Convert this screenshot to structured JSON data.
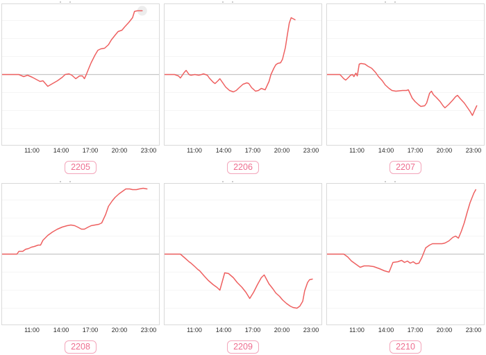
{
  "colors": {
    "line": "#ee5f5f",
    "grid": "#f5f5f5",
    "baseline": "#c6c6c6",
    "panel_border": "#d9d9d9",
    "badge_text": "#ee6d8f",
    "badge_border": "#f3a5ba",
    "tick_text": "#2b2b2b",
    "end_halo": "#ededed"
  },
  "chart_data": [
    {
      "type": "line",
      "label": "2205",
      "x_tick_labels": [
        "11:00",
        "14:00",
        "17:00",
        "20:00",
        "23:00"
      ],
      "x_tick_hours": [
        11,
        14,
        17,
        20,
        23
      ],
      "baseline": 0,
      "y_range": [
        -1,
        1
      ],
      "end_marker_halo": true,
      "points": [
        [
          7.85,
          0
        ],
        [
          9.6,
          0
        ],
        [
          10.1,
          -0.03
        ],
        [
          10.5,
          -0.01
        ],
        [
          11.0,
          -0.04
        ],
        [
          11.4,
          -0.07
        ],
        [
          11.8,
          -0.1
        ],
        [
          12.1,
          -0.09
        ],
        [
          12.6,
          -0.17
        ],
        [
          13.1,
          -0.13
        ],
        [
          13.6,
          -0.09
        ],
        [
          14.1,
          -0.04
        ],
        [
          14.4,
          0.0
        ],
        [
          14.8,
          0.01
        ],
        [
          15.1,
          -0.01
        ],
        [
          15.5,
          -0.06
        ],
        [
          15.9,
          -0.02
        ],
        [
          16.2,
          -0.02
        ],
        [
          16.4,
          -0.06
        ],
        [
          16.6,
          0.0
        ],
        [
          16.8,
          0.07
        ],
        [
          17.1,
          0.17
        ],
        [
          17.5,
          0.28
        ],
        [
          17.8,
          0.35
        ],
        [
          18.1,
          0.37
        ],
        [
          18.5,
          0.38
        ],
        [
          18.9,
          0.43
        ],
        [
          19.2,
          0.5
        ],
        [
          19.6,
          0.57
        ],
        [
          19.9,
          0.62
        ],
        [
          20.3,
          0.64
        ],
        [
          20.6,
          0.69
        ],
        [
          21.0,
          0.75
        ],
        [
          21.4,
          0.82
        ],
        [
          21.6,
          0.91
        ],
        [
          21.9,
          0.92
        ],
        [
          22.4,
          0.92
        ]
      ]
    },
    {
      "type": "line",
      "label": "2206",
      "x_tick_labels": [
        "11:00",
        "14:00",
        "17:00",
        "20:00",
        "23:00"
      ],
      "x_tick_hours": [
        11,
        14,
        17,
        20,
        23
      ],
      "baseline": 0,
      "y_range": [
        -1,
        1
      ],
      "end_marker_halo": false,
      "points": [
        [
          7.85,
          0
        ],
        [
          8.9,
          0
        ],
        [
          9.3,
          -0.02
        ],
        [
          9.5,
          -0.05
        ],
        [
          9.7,
          -0.01
        ],
        [
          9.9,
          0.03
        ],
        [
          10.1,
          0.06
        ],
        [
          10.4,
          0.0
        ],
        [
          10.6,
          -0.01
        ],
        [
          11.0,
          0.0
        ],
        [
          11.4,
          -0.01
        ],
        [
          11.7,
          0.0
        ],
        [
          11.9,
          0.01
        ],
        [
          12.3,
          -0.01
        ],
        [
          12.5,
          -0.05
        ],
        [
          12.9,
          -0.11
        ],
        [
          13.1,
          -0.13
        ],
        [
          13.4,
          -0.09
        ],
        [
          13.6,
          -0.06
        ],
        [
          13.9,
          -0.12
        ],
        [
          14.2,
          -0.18
        ],
        [
          14.6,
          -0.23
        ],
        [
          15.0,
          -0.25
        ],
        [
          15.3,
          -0.23
        ],
        [
          15.6,
          -0.19
        ],
        [
          16.0,
          -0.14
        ],
        [
          16.4,
          -0.12
        ],
        [
          16.6,
          -0.13
        ],
        [
          16.9,
          -0.19
        ],
        [
          17.3,
          -0.24
        ],
        [
          17.6,
          -0.23
        ],
        [
          17.9,
          -0.2
        ],
        [
          18.3,
          -0.22
        ],
        [
          18.7,
          -0.1
        ],
        [
          18.9,
          0.0
        ],
        [
          19.2,
          0.09
        ],
        [
          19.4,
          0.14
        ],
        [
          19.6,
          0.16
        ],
        [
          19.9,
          0.17
        ],
        [
          20.1,
          0.22
        ],
        [
          20.4,
          0.39
        ],
        [
          20.6,
          0.57
        ],
        [
          20.8,
          0.74
        ],
        [
          21.0,
          0.82
        ],
        [
          21.4,
          0.79
        ]
      ]
    },
    {
      "type": "line",
      "label": "2207",
      "x_tick_labels": [
        "11:00",
        "14:00",
        "17:00",
        "20:00",
        "23:00"
      ],
      "x_tick_hours": [
        11,
        14,
        17,
        20,
        23
      ],
      "baseline": 0,
      "y_range": [
        -1,
        1
      ],
      "end_marker_halo": false,
      "points": [
        [
          7.85,
          0
        ],
        [
          9.2,
          0
        ],
        [
          9.4,
          -0.03
        ],
        [
          9.6,
          -0.06
        ],
        [
          9.8,
          -0.08
        ],
        [
          10.1,
          -0.04
        ],
        [
          10.3,
          -0.01
        ],
        [
          10.5,
          0.0
        ],
        [
          10.65,
          -0.03
        ],
        [
          10.85,
          0.02
        ],
        [
          11.0,
          -0.02
        ],
        [
          11.2,
          0.15
        ],
        [
          11.4,
          0.16
        ],
        [
          11.8,
          0.15
        ],
        [
          12.1,
          0.12
        ],
        [
          12.5,
          0.09
        ],
        [
          12.9,
          0.03
        ],
        [
          13.2,
          -0.03
        ],
        [
          13.6,
          -0.09
        ],
        [
          13.9,
          -0.15
        ],
        [
          14.3,
          -0.2
        ],
        [
          14.6,
          -0.23
        ],
        [
          15.0,
          -0.24
        ],
        [
          15.7,
          -0.23
        ],
        [
          16.1,
          -0.23
        ],
        [
          16.3,
          -0.22
        ],
        [
          16.5,
          -0.28
        ],
        [
          16.7,
          -0.34
        ],
        [
          17.0,
          -0.39
        ],
        [
          17.4,
          -0.44
        ],
        [
          17.6,
          -0.46
        ],
        [
          18.0,
          -0.45
        ],
        [
          18.2,
          -0.41
        ],
        [
          18.5,
          -0.27
        ],
        [
          18.7,
          -0.24
        ],
        [
          18.9,
          -0.29
        ],
        [
          19.2,
          -0.33
        ],
        [
          19.6,
          -0.39
        ],
        [
          19.9,
          -0.45
        ],
        [
          20.1,
          -0.48
        ],
        [
          20.5,
          -0.43
        ],
        [
          20.9,
          -0.37
        ],
        [
          21.2,
          -0.32
        ],
        [
          21.4,
          -0.3
        ],
        [
          21.7,
          -0.35
        ],
        [
          22.1,
          -0.41
        ],
        [
          22.4,
          -0.47
        ],
        [
          22.7,
          -0.53
        ],
        [
          22.95,
          -0.59
        ],
        [
          23.2,
          -0.51
        ],
        [
          23.4,
          -0.45
        ]
      ]
    },
    {
      "type": "line",
      "label": "2208",
      "x_tick_labels": [
        "11:00",
        "14:00",
        "17:00",
        "20:00",
        "23:00"
      ],
      "x_tick_hours": [
        11,
        14,
        17,
        20,
        23
      ],
      "baseline": 0,
      "y_range": [
        -1,
        1
      ],
      "end_marker_halo": false,
      "points": [
        [
          7.85,
          0
        ],
        [
          9.4,
          0
        ],
        [
          9.6,
          0.04
        ],
        [
          10.0,
          0.04
        ],
        [
          10.3,
          0.07
        ],
        [
          10.6,
          0.08
        ],
        [
          10.9,
          0.1
        ],
        [
          11.2,
          0.11
        ],
        [
          11.6,
          0.13
        ],
        [
          11.85,
          0.13
        ],
        [
          12.1,
          0.2
        ],
        [
          12.6,
          0.27
        ],
        [
          13.1,
          0.32
        ],
        [
          13.6,
          0.36
        ],
        [
          14.1,
          0.39
        ],
        [
          14.6,
          0.41
        ],
        [
          15.0,
          0.42
        ],
        [
          15.4,
          0.41
        ],
        [
          15.7,
          0.39
        ],
        [
          16.1,
          0.36
        ],
        [
          16.4,
          0.36
        ],
        [
          16.8,
          0.39
        ],
        [
          17.1,
          0.41
        ],
        [
          17.5,
          0.42
        ],
        [
          17.9,
          0.43
        ],
        [
          18.2,
          0.45
        ],
        [
          18.6,
          0.57
        ],
        [
          18.9,
          0.69
        ],
        [
          19.3,
          0.77
        ],
        [
          19.6,
          0.82
        ],
        [
          20.0,
          0.87
        ],
        [
          20.4,
          0.91
        ],
        [
          20.7,
          0.94
        ],
        [
          21.1,
          0.94
        ],
        [
          21.4,
          0.93
        ],
        [
          21.8,
          0.93
        ],
        [
          22.1,
          0.94
        ],
        [
          22.5,
          0.95
        ],
        [
          22.9,
          0.94
        ]
      ]
    },
    {
      "type": "line",
      "label": "2209",
      "x_tick_labels": [
        "11:00",
        "14:00",
        "17:00",
        "20:00",
        "23:00"
      ],
      "x_tick_hours": [
        11,
        14,
        17,
        20,
        23
      ],
      "baseline": 0,
      "y_range": [
        -1,
        1
      ],
      "end_marker_halo": false,
      "points": [
        [
          7.85,
          0
        ],
        [
          9.5,
          0
        ],
        [
          10.0,
          -0.06
        ],
        [
          10.4,
          -0.11
        ],
        [
          10.6,
          -0.13
        ],
        [
          11.0,
          -0.18
        ],
        [
          11.3,
          -0.22
        ],
        [
          11.5,
          -0.24
        ],
        [
          12.0,
          -0.32
        ],
        [
          12.4,
          -0.38
        ],
        [
          12.9,
          -0.44
        ],
        [
          13.3,
          -0.48
        ],
        [
          13.6,
          -0.52
        ],
        [
          14.1,
          -0.27
        ],
        [
          14.5,
          -0.28
        ],
        [
          15.0,
          -0.34
        ],
        [
          15.4,
          -0.41
        ],
        [
          15.9,
          -0.48
        ],
        [
          16.3,
          -0.55
        ],
        [
          16.7,
          -0.64
        ],
        [
          17.1,
          -0.55
        ],
        [
          17.5,
          -0.44
        ],
        [
          17.9,
          -0.34
        ],
        [
          18.2,
          -0.3
        ],
        [
          18.7,
          -0.43
        ],
        [
          19.1,
          -0.5
        ],
        [
          19.4,
          -0.56
        ],
        [
          19.8,
          -0.61
        ],
        [
          20.1,
          -0.66
        ],
        [
          20.5,
          -0.71
        ],
        [
          20.9,
          -0.75
        ],
        [
          21.2,
          -0.77
        ],
        [
          21.6,
          -0.78
        ],
        [
          21.9,
          -0.75
        ],
        [
          22.2,
          -0.68
        ],
        [
          22.4,
          -0.53
        ],
        [
          22.7,
          -0.41
        ],
        [
          22.9,
          -0.37
        ],
        [
          23.2,
          -0.36
        ]
      ]
    },
    {
      "type": "line",
      "label": "2210",
      "x_tick_labels": [
        "11:00",
        "14:00",
        "17:00",
        "20:00",
        "23:00"
      ],
      "x_tick_hours": [
        11,
        14,
        17,
        20,
        23
      ],
      "baseline": 0,
      "y_range": [
        -1,
        1
      ],
      "end_marker_halo": false,
      "points": [
        [
          7.85,
          0
        ],
        [
          9.6,
          0
        ],
        [
          10.0,
          -0.04
        ],
        [
          10.4,
          -0.1
        ],
        [
          10.8,
          -0.14
        ],
        [
          11.3,
          -0.19
        ],
        [
          11.7,
          -0.17
        ],
        [
          12.2,
          -0.17
        ],
        [
          12.7,
          -0.18
        ],
        [
          13.3,
          -0.21
        ],
        [
          13.8,
          -0.24
        ],
        [
          14.3,
          -0.26
        ],
        [
          14.7,
          -0.12
        ],
        [
          15.2,
          -0.11
        ],
        [
          15.6,
          -0.09
        ],
        [
          15.9,
          -0.12
        ],
        [
          16.2,
          -0.1
        ],
        [
          16.5,
          -0.13
        ],
        [
          16.8,
          -0.11
        ],
        [
          17.1,
          -0.14
        ],
        [
          17.4,
          -0.13
        ],
        [
          17.7,
          -0.05
        ],
        [
          18.1,
          0.09
        ],
        [
          18.5,
          0.13
        ],
        [
          18.8,
          0.15
        ],
        [
          19.3,
          0.15
        ],
        [
          19.8,
          0.15
        ],
        [
          20.1,
          0.16
        ],
        [
          20.5,
          0.19
        ],
        [
          20.9,
          0.24
        ],
        [
          21.2,
          0.26
        ],
        [
          21.5,
          0.23
        ],
        [
          21.8,
          0.33
        ],
        [
          22.1,
          0.45
        ],
        [
          22.4,
          0.6
        ],
        [
          22.7,
          0.74
        ],
        [
          22.9,
          0.81
        ],
        [
          23.1,
          0.88
        ],
        [
          23.3,
          0.93
        ]
      ]
    }
  ]
}
